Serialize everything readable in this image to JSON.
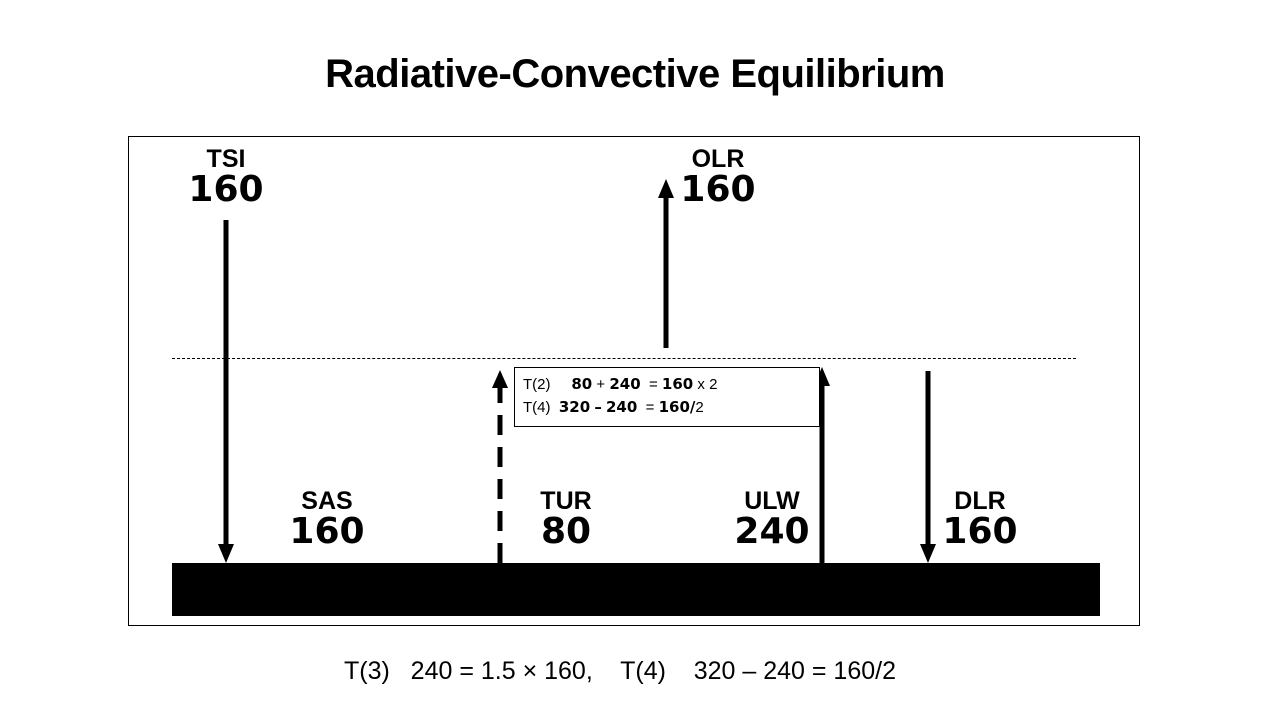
{
  "title": "Radiative-Convective Equilibrium",
  "labels": {
    "tsi": {
      "name": "TSI",
      "value": "160"
    },
    "olr": {
      "name": "OLR",
      "value": "160"
    },
    "sas": {
      "name": "SAS",
      "value": "160"
    },
    "tur": {
      "name": "TUR",
      "value": "80"
    },
    "ulw": {
      "name": "ULW",
      "value": "240"
    },
    "dlr": {
      "name": "DLR",
      "value": "160"
    }
  },
  "equation_box": {
    "row1": {
      "tag": "T(2)",
      "a": "80",
      "op1": "+",
      "b": "240",
      "eq": "=",
      "c": "160",
      "tail": "x 2"
    },
    "row2": {
      "tag": "T(4)",
      "a": "320",
      "op1": "–",
      "b": "240",
      "eq": "=",
      "c": "160/",
      "tail": "2"
    }
  },
  "formula": "T(3)   240 = 1.5 × 160,    T(4)    320 – 240 = 160/2"
}
